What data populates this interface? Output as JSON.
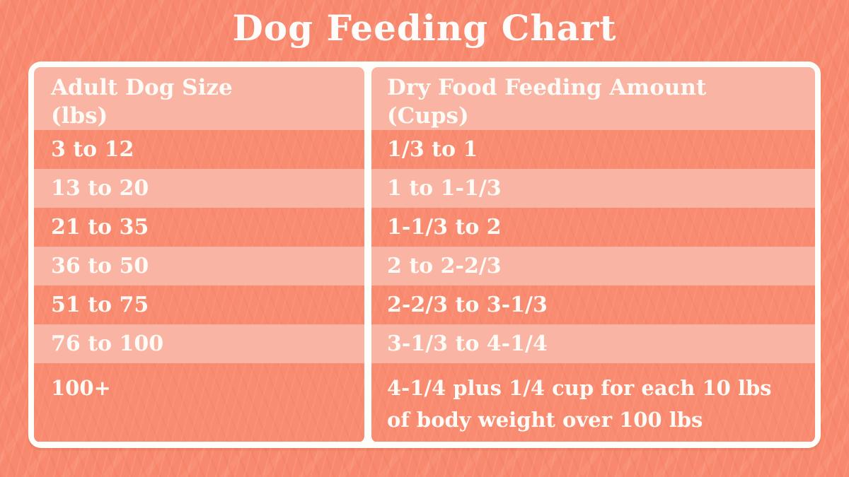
{
  "title": "Dog Feeding Chart",
  "headers": {
    "size": {
      "line1": "Adult Dog Size",
      "line2": "(lbs)"
    },
    "amount": {
      "line1": "Dry Food Feeding Amount",
      "line2": "(Cups)"
    }
  },
  "chart_data": {
    "type": "table",
    "title": "Dog Feeding Chart",
    "columns": [
      "Adult Dog Size (lbs)",
      "Dry Food Feeding Amount (Cups)"
    ],
    "rows": [
      [
        "3 to 12",
        "1/3 to 1"
      ],
      [
        "13 to 20",
        "1 to 1-1/3"
      ],
      [
        "21 to 35",
        "1-1/3 to 2"
      ],
      [
        "36 to 50",
        "2 to 2-2/3"
      ],
      [
        "51 to 75",
        "2-2/3 to 3-1/3"
      ],
      [
        "76 to 100",
        "3-1/3 to 4-1/4"
      ],
      [
        "100+",
        "4-1/4 plus 1/4 cup for each 10 lbs of body weight over 100 lbs"
      ]
    ],
    "layout_hints": {
      "row_striping": [
        "dark",
        "light",
        "dark",
        "light",
        "dark",
        "light",
        "dark"
      ],
      "header_background": "light",
      "frame": "white rounded border"
    }
  },
  "colors": {
    "background": "#F9896E",
    "row_dark": "#F98B70",
    "row_light": "#FAB4A3",
    "frame_white": "#FDFDFA",
    "text_white": "#FEFAF6"
  }
}
